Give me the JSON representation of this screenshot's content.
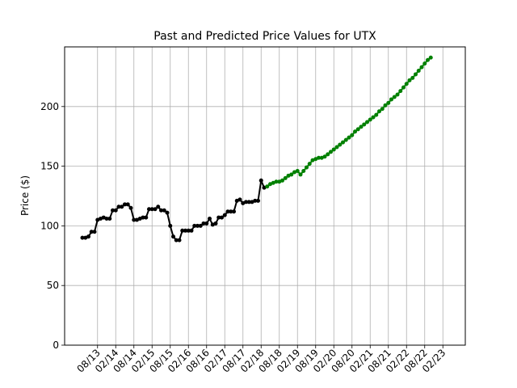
{
  "chart_data": {
    "type": "line",
    "title": "Past and Predicted Price Values for UTX",
    "xlabel": "",
    "ylabel": "Price ($)",
    "ylim": [
      0,
      250
    ],
    "yticks": [
      0,
      50,
      100,
      150,
      200
    ],
    "xticks": [
      "08/13",
      "02/14",
      "08/14",
      "02/15",
      "08/15",
      "02/16",
      "08/16",
      "02/17",
      "08/17",
      "02/18",
      "08/18",
      "02/19",
      "08/19",
      "02/20",
      "08/20",
      "02/21",
      "08/21",
      "02/22",
      "08/22",
      "02/23"
    ],
    "grid": true,
    "legend": "none",
    "x_unit": "month",
    "x_start": "2013-03",
    "colors": {
      "past": "#000000",
      "predicted": "#008000"
    },
    "series": [
      {
        "start": "2013-03",
        "color": "#000000",
        "values": [
          90,
          90,
          91,
          95,
          95,
          105,
          106,
          107,
          106,
          106,
          113,
          113,
          116,
          116,
          118,
          118,
          115,
          105,
          105,
          106,
          107,
          107,
          114,
          114,
          114,
          116,
          113,
          113,
          111,
          100,
          91,
          88,
          88,
          96,
          96,
          96,
          96,
          100,
          100,
          100,
          102,
          102,
          106,
          101,
          102,
          107,
          107,
          109,
          112,
          112,
          112,
          121,
          122,
          119,
          120,
          120,
          120,
          121,
          121,
          138,
          132
        ]
      },
      {
        "start": "2018-04",
        "color": "#008000",
        "values": [
          133,
          135,
          136,
          137,
          137,
          138,
          140,
          142,
          143,
          145,
          146,
          143,
          146,
          149,
          152,
          155,
          156,
          157,
          157,
          158,
          160,
          162,
          164,
          166,
          168,
          170,
          172,
          174,
          176,
          179,
          181,
          183,
          185,
          187,
          189,
          191,
          193,
          196,
          198,
          201,
          203,
          206,
          208,
          210,
          213,
          216,
          219,
          222,
          224,
          227,
          230,
          233,
          236,
          239,
          241
        ]
      }
    ]
  }
}
